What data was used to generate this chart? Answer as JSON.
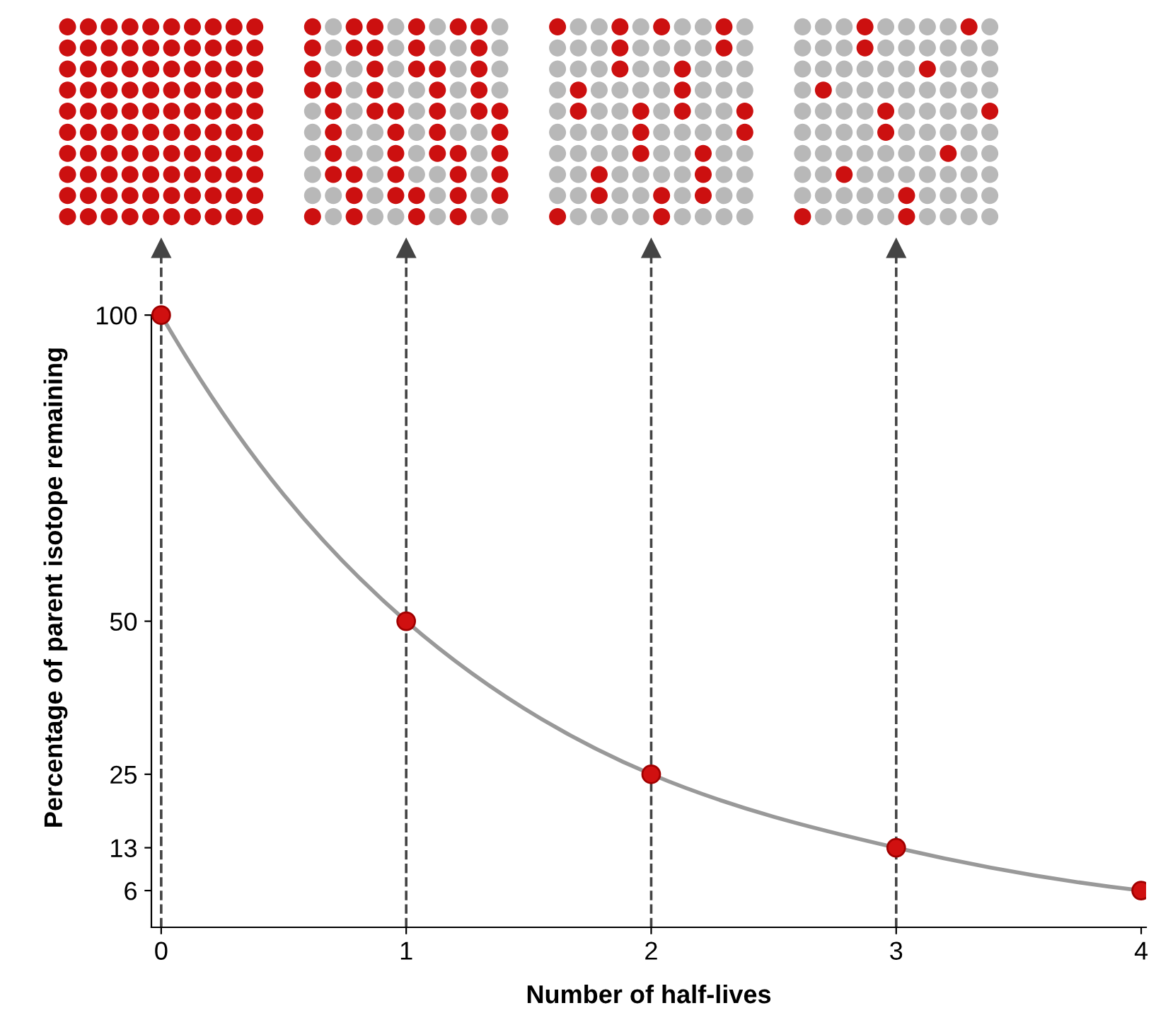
{
  "chart_data": {
    "type": "line",
    "xlabel": "Number of half-lives",
    "ylabel": "Percentage of parent isotope remaining",
    "x": [
      0,
      1,
      2,
      3,
      4
    ],
    "series": [
      {
        "color": "#999999",
        "values": [
          100,
          50,
          25,
          13,
          6
        ]
      }
    ],
    "marker": "circle",
    "xlim": [
      -0.04,
      4.02
    ],
    "ylim": [
      0,
      111
    ],
    "xticks": [
      0,
      1,
      2,
      3,
      4
    ],
    "yticks": [
      6,
      13,
      25,
      50,
      100
    ],
    "ref_lines": [
      {
        "axis": "x",
        "value": 0,
        "color": "#444444",
        "line_style": "dashed"
      },
      {
        "axis": "x",
        "value": 1,
        "color": "#444444",
        "line_style": "dashed"
      },
      {
        "axis": "x",
        "value": 2,
        "color": "#444444",
        "line_style": "dashed"
      },
      {
        "axis": "x",
        "value": 3,
        "color": "#444444",
        "line_style": "dashed"
      }
    ],
    "grid": false
  }
}
